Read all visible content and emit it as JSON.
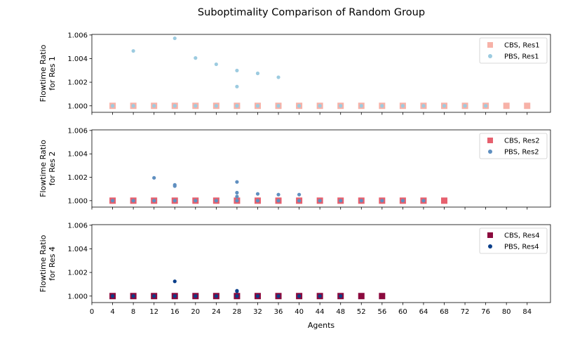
{
  "title": "Suboptimality Comparison of Random Group",
  "xlabel": "Agents",
  "x_ticks": [
    0,
    4,
    8,
    12,
    16,
    20,
    24,
    28,
    32,
    36,
    40,
    44,
    48,
    52,
    56,
    60,
    64,
    68,
    72,
    76,
    80,
    84
  ],
  "xlim": [
    0,
    88.5
  ],
  "chart_data": [
    {
      "type": "scatter",
      "ylabel": [
        "Flowtime Ratio",
        "for Res 1"
      ],
      "ylim": [
        0.99945,
        1.00605
      ],
      "y_ticks": [
        "1.000",
        "1.002",
        "1.004",
        "1.006"
      ],
      "legend_position": "top-right",
      "series": [
        {
          "name": "CBS, Res1",
          "marker": "square",
          "color": "#f7b2a8",
          "x": [
            4,
            8,
            12,
            16,
            20,
            24,
            28,
            32,
            36,
            40,
            44,
            48,
            52,
            56,
            60,
            64,
            68,
            72,
            76,
            80,
            84
          ],
          "y": [
            1.0,
            1.0,
            1.0,
            1.0,
            1.0,
            1.0,
            1.0,
            1.0,
            1.0,
            1.0,
            1.0,
            1.0,
            1.0,
            1.0,
            1.0,
            1.0,
            1.0,
            1.0,
            1.0,
            1.0,
            1.0
          ]
        },
        {
          "name": "PBS, Res1",
          "marker": "circle",
          "color": "#9ccbe0",
          "x": [
            4,
            8,
            8,
            12,
            16,
            16,
            20,
            20,
            24,
            24,
            28,
            28,
            28,
            28,
            32,
            32,
            36,
            36,
            40,
            44,
            48,
            52,
            56,
            60,
            64,
            68,
            72,
            76
          ],
          "y": [
            1.0,
            1.0,
            1.00465,
            1.0,
            1.0,
            1.00572,
            1.0,
            1.00405,
            1.0,
            1.00352,
            1.0,
            1.00299,
            1.00163,
            1.0,
            1.0,
            1.00275,
            1.0,
            1.00242,
            1.0,
            1.0,
            1.0,
            1.0,
            1.0,
            1.0,
            1.0,
            1.0,
            1.0,
            1.0
          ]
        }
      ]
    },
    {
      "type": "scatter",
      "ylabel": [
        "Flowtime Ratio",
        "for Res 2"
      ],
      "ylim": [
        0.99945,
        1.00605
      ],
      "y_ticks": [
        "1.000",
        "1.002",
        "1.004",
        "1.006"
      ],
      "legend_position": "top-right",
      "series": [
        {
          "name": "CBS, Res2",
          "marker": "square",
          "color": "#e6606e",
          "x": [
            4,
            8,
            12,
            16,
            20,
            24,
            28,
            32,
            36,
            40,
            44,
            48,
            52,
            56,
            60,
            64,
            68
          ],
          "y": [
            1.0,
            1.0,
            1.0,
            1.0,
            1.0,
            1.0,
            1.0,
            1.0,
            1.0,
            1.0,
            1.0,
            1.0,
            1.0,
            1.0,
            1.0,
            1.0,
            1.0
          ]
        },
        {
          "name": "PBS, Res2",
          "marker": "circle",
          "color": "#5f8fc0",
          "x": [
            4,
            8,
            12,
            12,
            16,
            16,
            16,
            20,
            24,
            28,
            28,
            28,
            28,
            32,
            32,
            36,
            36,
            40,
            40,
            44,
            48,
            52,
            56,
            60,
            64
          ],
          "y": [
            1.0,
            1.0,
            1.0,
            1.00195,
            1.0,
            1.00135,
            1.00125,
            1.0,
            1.0,
            1.0,
            1.0016,
            1.00068,
            1.00035,
            1.0,
            1.00058,
            1.0,
            1.00052,
            1.0,
            1.00052,
            1.0,
            1.0,
            1.0,
            1.0,
            1.0,
            1.0
          ]
        }
      ]
    },
    {
      "type": "scatter",
      "ylabel": [
        "Flowtime Ratio",
        "for Res 4"
      ],
      "ylim": [
        0.99945,
        1.00605
      ],
      "y_ticks": [
        "1.000",
        "1.002",
        "1.004",
        "1.006"
      ],
      "legend_position": "top-right",
      "series": [
        {
          "name": "CBS, Res4",
          "marker": "square",
          "color": "#8b0a3e",
          "x": [
            4,
            8,
            12,
            16,
            20,
            24,
            28,
            32,
            36,
            40,
            44,
            48,
            52,
            56
          ],
          "y": [
            1.0,
            1.0,
            1.0,
            1.0,
            1.0,
            1.0,
            1.0,
            1.0,
            1.0,
            1.0,
            1.0,
            1.0,
            1.0,
            1.0
          ]
        },
        {
          "name": "PBS, Res4",
          "marker": "circle",
          "color": "#0b3f8a",
          "x": [
            4,
            8,
            12,
            16,
            16,
            20,
            24,
            28,
            28,
            28,
            32,
            36,
            40,
            44,
            48
          ],
          "y": [
            1.0,
            1.0,
            1.0,
            1.0,
            1.00125,
            1.0,
            1.0,
            1.0,
            1.00045,
            1.0004,
            1.0,
            1.0,
            1.0,
            1.0,
            1.0
          ]
        }
      ]
    }
  ]
}
